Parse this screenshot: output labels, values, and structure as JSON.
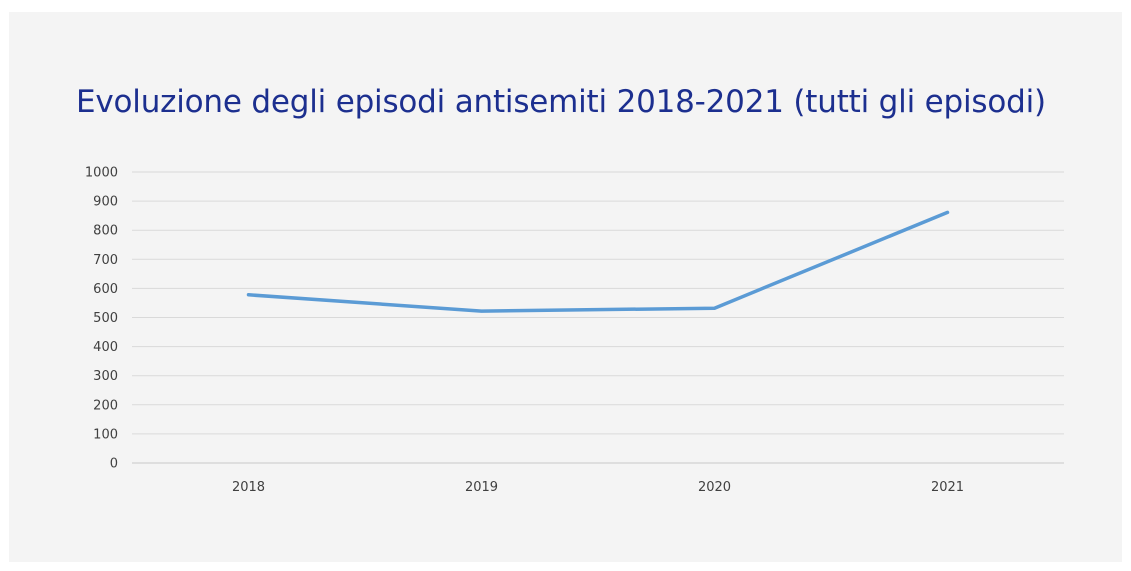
{
  "chart_data": {
    "type": "line",
    "title": "Evoluzione degli episodi antisemiti 2018-2021 (tutti gli episodi)",
    "xlabel": "",
    "ylabel": "",
    "categories": [
      "2018",
      "2019",
      "2020",
      "2021"
    ],
    "series": [
      {
        "values": [
          578,
          522,
          532,
          861
        ]
      }
    ],
    "ylim": [
      0,
      1000
    ],
    "yticks": [
      0,
      100,
      200,
      300,
      400,
      500,
      600,
      700,
      800,
      900,
      1000
    ],
    "grid": true,
    "legend": "none",
    "colors": {
      "line": "#5b9bd5",
      "grid": "#d9d9d9",
      "title": "#1c2f8f",
      "tick_text": "#404040",
      "background": "#f4f4f4"
    }
  }
}
